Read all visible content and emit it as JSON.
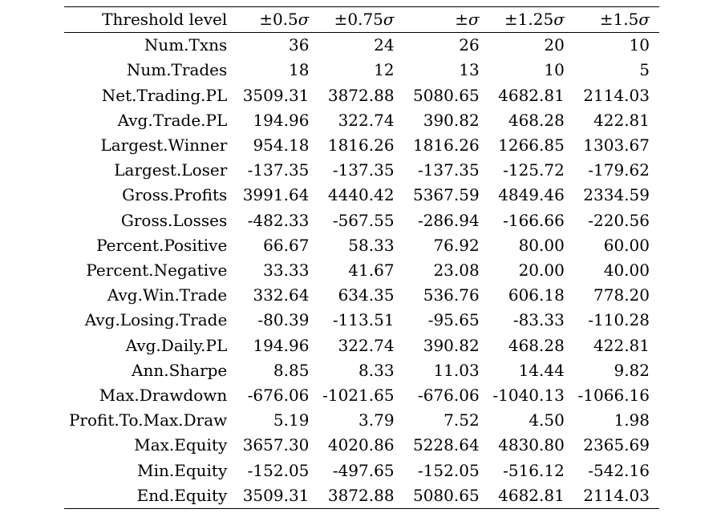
{
  "table": {
    "header": {
      "label": "Threshold level",
      "columns": [
        {
          "sign": "±",
          "num": "0.5",
          "sym": "σ"
        },
        {
          "sign": "±",
          "num": "0.75",
          "sym": "σ"
        },
        {
          "sign": "±",
          "num": "",
          "sym": "σ"
        },
        {
          "sign": "±",
          "num": "1.25",
          "sym": "σ"
        },
        {
          "sign": "±",
          "num": "1.5",
          "sym": "σ"
        }
      ]
    },
    "rows": [
      {
        "label": "Num.Txns",
        "values": [
          "36",
          "24",
          "26",
          "20",
          "10"
        ]
      },
      {
        "label": "Num.Trades",
        "values": [
          "18",
          "12",
          "13",
          "10",
          "5"
        ]
      },
      {
        "label": "Net.Trading.PL",
        "values": [
          "3509.31",
          "3872.88",
          "5080.65",
          "4682.81",
          "2114.03"
        ]
      },
      {
        "label": "Avg.Trade.PL",
        "values": [
          "194.96",
          "322.74",
          "390.82",
          "468.28",
          "422.81"
        ]
      },
      {
        "label": "Largest.Winner",
        "values": [
          "954.18",
          "1816.26",
          "1816.26",
          "1266.85",
          "1303.67"
        ]
      },
      {
        "label": "Largest.Loser",
        "values": [
          "-137.35",
          "-137.35",
          "-137.35",
          "-125.72",
          "-179.62"
        ]
      },
      {
        "label": "Gross.Profits",
        "values": [
          "3991.64",
          "4440.42",
          "5367.59",
          "4849.46",
          "2334.59"
        ]
      },
      {
        "label": "Gross.Losses",
        "values": [
          "-482.33",
          "-567.55",
          "-286.94",
          "-166.66",
          "-220.56"
        ]
      },
      {
        "label": "Percent.Positive",
        "values": [
          "66.67",
          "58.33",
          "76.92",
          "80.00",
          "60.00"
        ]
      },
      {
        "label": "Percent.Negative",
        "values": [
          "33.33",
          "41.67",
          "23.08",
          "20.00",
          "40.00"
        ]
      },
      {
        "label": "Avg.Win.Trade",
        "values": [
          "332.64",
          "634.35",
          "536.76",
          "606.18",
          "778.20"
        ]
      },
      {
        "label": "Avg.Losing.Trade",
        "values": [
          "-80.39",
          "-113.51",
          "-95.65",
          "-83.33",
          "-110.28"
        ]
      },
      {
        "label": "Avg.Daily.PL",
        "values": [
          "194.96",
          "322.74",
          "390.82",
          "468.28",
          "422.81"
        ]
      },
      {
        "label": "Ann.Sharpe",
        "values": [
          "8.85",
          "8.33",
          "11.03",
          "14.44",
          "9.82"
        ]
      },
      {
        "label": "Max.Drawdown",
        "values": [
          "-676.06",
          "-1021.65",
          "-676.06",
          "-1040.13",
          "-1066.16"
        ]
      },
      {
        "label": "Profit.To.Max.Draw",
        "values": [
          "5.19",
          "3.79",
          "7.52",
          "4.50",
          "1.98"
        ]
      },
      {
        "label": "Max.Equity",
        "values": [
          "3657.30",
          "4020.86",
          "5228.64",
          "4830.80",
          "2365.69"
        ]
      },
      {
        "label": "Min.Equity",
        "values": [
          "-152.05",
          "-497.65",
          "-152.05",
          "-516.12",
          "-542.16"
        ]
      },
      {
        "label": "End.Equity",
        "values": [
          "3509.31",
          "3872.88",
          "5080.65",
          "4682.81",
          "2114.03"
        ]
      }
    ]
  }
}
